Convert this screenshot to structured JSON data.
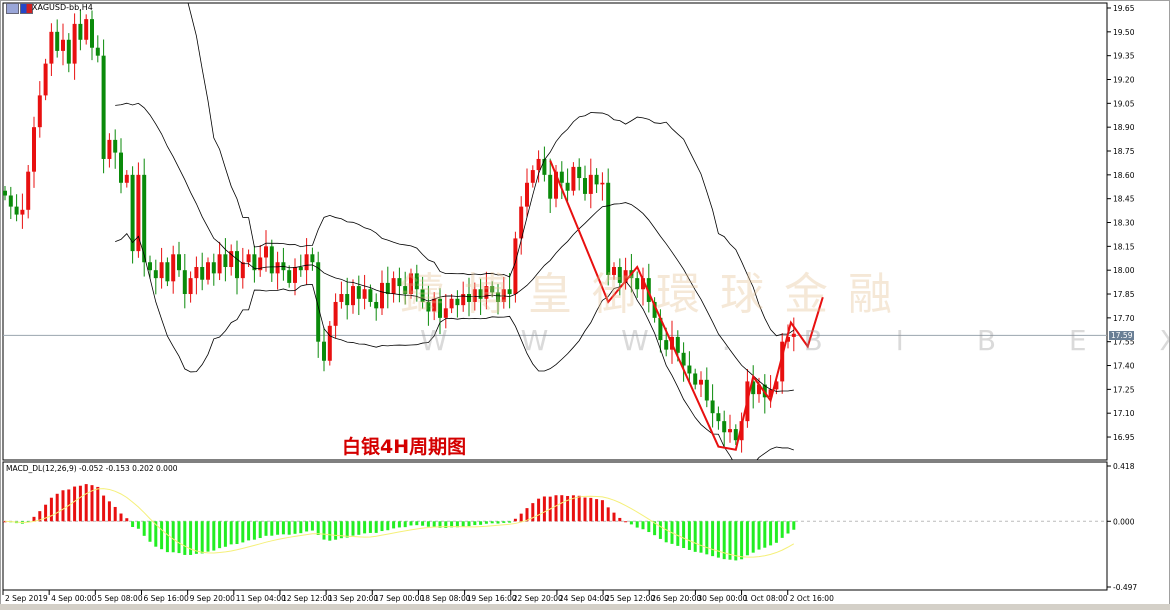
{
  "window": {
    "title": "XAGUSD-bb,H4"
  },
  "caption": "白银4H周期图",
  "watermark": {
    "brand": "鑄博皇御環球金融",
    "url": "W W W . B I B E X . C O M"
  },
  "price_axis": {
    "ticks": [
      "19.65",
      "19.50",
      "19.35",
      "19.20",
      "19.05",
      "18.90",
      "18.75",
      "18.60",
      "18.45",
      "18.30",
      "18.15",
      "18.00",
      "17.85",
      "17.70",
      "17.55",
      "17.40",
      "17.25",
      "17.10",
      "16.95"
    ],
    "current_price": "17.59"
  },
  "macd": {
    "label": "MACD_DL(12,26,9) -0.052 -0.153 0.202 0.000",
    "axis_ticks": [
      "0.418",
      "0.000",
      "-0.497"
    ]
  },
  "time_axis": [
    "2 Sep 2019",
    "4 Sep 00:00",
    "5 Sep 08:00",
    "6 Sep 16:00",
    "9 Sep 20:00",
    "11 Sep 04:00",
    "12 Sep 12:00",
    "13 Sep 20:00",
    "17 Sep 00:00",
    "18 Sep 08:00",
    "19 Sep 16:00",
    "22 Sep 20:00",
    "24 Sep 04:00",
    "25 Sep 12:00",
    "26 Sep 20:00",
    "30 Sep 00:00",
    "1 Oct 08:00",
    "2 Oct 16:00"
  ],
  "colors": {
    "bull": "#e81010",
    "bear": "#0a8a0a",
    "macd_pos": "#e81010",
    "macd_neg": "#22ee22",
    "signal": "#f5f07a",
    "zigzag": "#e81010",
    "bands": "#000000"
  },
  "chart_data": {
    "type": "candlestick",
    "symbol": "XAGUSD",
    "timeframe": "H4",
    "ylim": [
      16.88,
      19.68
    ],
    "indicators": [
      "Bollinger Bands(20,2)",
      "MACD(12,26,9)"
    ],
    "closes": [
      18.47,
      18.4,
      18.35,
      18.38,
      18.62,
      18.9,
      19.1,
      19.3,
      19.5,
      19.38,
      19.45,
      19.3,
      19.55,
      19.45,
      19.58,
      19.4,
      19.35,
      18.7,
      18.82,
      18.74,
      18.55,
      18.6,
      18.12,
      18.6,
      18.05,
      18.0,
      17.95,
      18.05,
      17.93,
      18.1,
      18.0,
      17.85,
      17.95,
      18.02,
      17.94,
      18.05,
      17.98,
      18.1,
      18.02,
      18.12,
      17.95,
      18.05,
      18.1,
      18.0,
      18.08,
      18.15,
      17.98,
      18.05,
      18.0,
      17.92,
      18.02,
      18.0,
      18.1,
      18.05,
      17.55,
      17.43,
      17.65,
      17.8,
      17.85,
      17.78,
      17.9,
      17.82,
      17.88,
      17.8,
      17.76,
      17.92,
      17.85,
      17.95,
      17.9,
      17.85,
      17.98,
      17.88,
      17.8,
      17.74,
      17.82,
      17.7,
      17.76,
      17.82,
      17.78,
      17.85,
      17.8,
      17.88,
      17.82,
      17.9,
      17.86,
      17.8,
      17.88,
      17.85,
      18.2,
      18.4,
      18.55,
      18.63,
      18.7,
      18.6,
      18.45,
      18.62,
      18.55,
      18.5,
      18.65,
      18.58,
      18.48,
      18.6,
      18.54,
      18.55,
      17.97,
      18.02,
      17.92,
      18.0,
      17.95,
      17.88,
      17.95,
      17.8,
      17.7,
      17.56,
      17.5,
      17.58,
      17.48,
      17.4,
      17.35,
      17.28,
      17.31,
      17.18,
      17.1,
      17.05,
      16.98,
      17.0,
      16.93,
      17.05,
      17.3,
      17.22,
      17.28,
      17.2,
      17.25,
      17.3,
      17.55,
      17.58,
      17.6
    ],
    "zigzag": [
      [
        94,
        18.69
      ],
      [
        104,
        17.8
      ],
      [
        109,
        18.02
      ],
      [
        123,
        16.89
      ],
      [
        126,
        16.87
      ],
      [
        129,
        17.33
      ],
      [
        132,
        17.18
      ],
      [
        135.5,
        17.67
      ],
      [
        138.4,
        17.52
      ],
      [
        141,
        17.83
      ]
    ],
    "macd_range": [
      -0.497,
      0.418
    ]
  }
}
